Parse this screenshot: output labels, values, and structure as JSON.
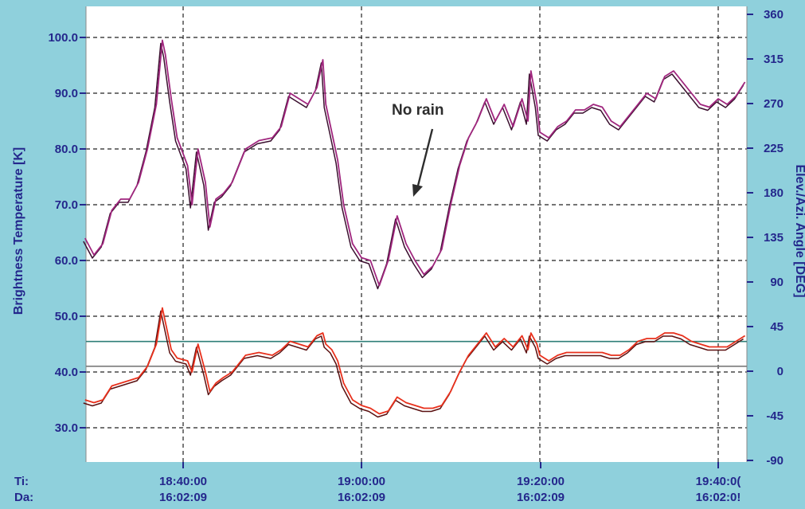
{
  "chart_data": {
    "type": "line",
    "ylabel": "Brightness Temperature [K]",
    "y2label": "Elev./Azi. Angle [DEG]",
    "ylim": [
      22,
      104
    ],
    "y2lim": [
      -90,
      360
    ],
    "yticks": [
      "100.0",
      "90.0",
      "80.0",
      "70.0",
      "60.0",
      "50.0",
      "40.0",
      "30.0"
    ],
    "y2ticks": [
      "360",
      "315",
      "270",
      "225",
      "180",
      "135",
      "90",
      "45",
      "0",
      "-45",
      "-90"
    ],
    "x_row_labels": [
      "Ti:",
      "Da:"
    ],
    "xticks": [
      {
        "time": "18:40:00",
        "date": "16:02:09"
      },
      {
        "time": "19:00:00",
        "date": "16:02:09"
      },
      {
        "time": "19:20:00",
        "date": "16:02:09"
      },
      {
        "time": "19:40:0(",
        "date": "16:02:0!"
      }
    ],
    "grid": true,
    "annotation": "No rain",
    "colors": {
      "background": "#8fd0dc",
      "plot_area": "#ffffff",
      "axis_text": "#24278c",
      "upper_series": "#a0267e",
      "upper_series_dark": "#3a0f2e",
      "lower_series": "#e8301c",
      "lower_series_dark": "#5a1010",
      "elevation_line": "#2f7f78",
      "azimuth_line": "#7a7a7a"
    },
    "reference_lines": [
      {
        "axis": "right",
        "value": 30,
        "color": "#2f7f78"
      },
      {
        "axis": "right",
        "value": 5,
        "color": "#7a7a7a"
      }
    ],
    "series": [
      {
        "x": [
          "18:29:00",
          "18:30:00",
          "18:31:00",
          "18:32:00",
          "18:33:00",
          "18:34:00",
          "18:35:00",
          "18:36:00",
          "18:37:00",
          "18:37:40",
          "18:38:00",
          "18:38:40",
          "18:39:20",
          "18:40:30",
          "18:41:00",
          "18:41:40",
          "18:42:30",
          "18:43:00",
          "18:43:40",
          "18:44:30",
          "18:45:30",
          "18:47:00",
          "18:48:30",
          "18:50:00",
          "18:51:00",
          "18:52:00",
          "18:53:00",
          "18:54:00",
          "18:55:00",
          "18:55:40",
          "18:56:00",
          "18:56:40",
          "18:57:20",
          "18:58:00",
          "18:59:00",
          "19:00:00",
          "19:01:00",
          "19:02:00",
          "19:03:00",
          "19:04:00",
          "19:05:00",
          "19:06:00",
          "19:07:00",
          "19:08:00",
          "19:09:00",
          "19:10:00",
          "19:11:00",
          "19:12:00",
          "19:13:00",
          "19:14:00",
          "19:15:00",
          "19:16:00",
          "19:17:00",
          "19:18:00",
          "19:18:40",
          "19:19:00",
          "19:19:40",
          "19:20:00",
          "19:21:00",
          "19:22:00",
          "19:23:00",
          "19:24:00",
          "19:25:00",
          "19:26:00",
          "19:27:00",
          "19:28:00",
          "19:29:00",
          "19:30:00",
          "19:31:00",
          "19:32:00",
          "19:33:00",
          "19:34:00",
          "19:35:00",
          "19:36:00",
          "19:37:00",
          "19:38:00",
          "19:39:00",
          "19:40:00",
          "19:41:00",
          "19:42:00",
          "19:43:00"
        ],
        "values": [
          64.0,
          61.0,
          63.0,
          69.0,
          71.0,
          71.0,
          74.0,
          80.0,
          88.0,
          99.5,
          97.0,
          89.0,
          82.0,
          77.0,
          70.0,
          80.0,
          74.0,
          66.0,
          71.0,
          72.0,
          74.0,
          80.0,
          81.5,
          82.0,
          84.0,
          90.0,
          89.0,
          88.0,
          91.0,
          96.0,
          88.0,
          83.0,
          78.0,
          70.0,
          63.0,
          60.5,
          60.0,
          55.5,
          60.0,
          68.0,
          63.0,
          60.0,
          57.5,
          59.0,
          62.0,
          70.0,
          77.0,
          82.0,
          85.0,
          89.0,
          85.0,
          88.0,
          84.0,
          89.0,
          85.0,
          94.0,
          88.0,
          83.0,
          82.0,
          84.0,
          85.0,
          87.0,
          87.0,
          88.0,
          87.5,
          85.0,
          84.0,
          86.0,
          88.0,
          90.0,
          89.0,
          93.0,
          94.0,
          92.0,
          90.0,
          88.0,
          87.5,
          89.0,
          88.0,
          89.5,
          92.0
        ]
      },
      {
        "x": [
          "18:29:00",
          "18:30:00",
          "18:31:00",
          "18:32:00",
          "18:33:00",
          "18:34:00",
          "18:35:00",
          "18:36:00",
          "18:37:00",
          "18:37:40",
          "18:38:00",
          "18:38:40",
          "18:39:20",
          "18:40:30",
          "18:41:00",
          "18:41:40",
          "18:42:30",
          "18:43:00",
          "18:43:40",
          "18:44:30",
          "18:45:30",
          "18:47:00",
          "18:48:30",
          "18:50:00",
          "18:51:00",
          "18:52:00",
          "18:53:00",
          "18:54:00",
          "18:55:00",
          "18:55:40",
          "18:56:00",
          "18:56:40",
          "18:57:20",
          "18:58:00",
          "18:59:00",
          "19:00:00",
          "19:01:00",
          "19:02:00",
          "19:03:00",
          "19:04:00",
          "19:05:00",
          "19:06:00",
          "19:07:00",
          "19:08:00",
          "19:09:00",
          "19:10:00",
          "19:11:00",
          "19:12:00",
          "19:13:00",
          "19:14:00",
          "19:15:00",
          "19:16:00",
          "19:17:00",
          "19:18:00",
          "19:18:40",
          "19:19:00",
          "19:19:40",
          "19:20:00",
          "19:21:00",
          "19:22:00",
          "19:23:00",
          "19:24:00",
          "19:25:00",
          "19:26:00",
          "19:27:00",
          "19:28:00",
          "19:29:00",
          "19:30:00",
          "19:31:00",
          "19:32:00",
          "19:33:00",
          "19:34:00",
          "19:35:00",
          "19:36:00",
          "19:37:00",
          "19:38:00",
          "19:39:00",
          "19:40:00",
          "19:41:00",
          "19:42:00",
          "19:43:00"
        ],
        "values": [
          35.0,
          34.5,
          35.0,
          37.5,
          38.0,
          38.5,
          39.0,
          41.0,
          45.0,
          51.5,
          49.0,
          44.0,
          42.5,
          42.0,
          40.0,
          45.0,
          40.0,
          36.5,
          38.0,
          39.0,
          40.0,
          43.0,
          43.5,
          43.0,
          44.0,
          45.5,
          45.0,
          44.5,
          46.5,
          47.0,
          45.0,
          44.0,
          42.0,
          38.0,
          35.0,
          34.0,
          33.5,
          32.5,
          33.0,
          35.5,
          34.5,
          34.0,
          33.5,
          33.5,
          34.0,
          36.5,
          40.0,
          43.0,
          45.0,
          47.0,
          44.5,
          46.0,
          44.5,
          46.5,
          44.0,
          47.0,
          45.0,
          43.0,
          42.0,
          43.0,
          43.5,
          43.5,
          43.5,
          43.5,
          43.5,
          43.0,
          43.0,
          44.0,
          45.5,
          46.0,
          46.0,
          47.0,
          47.0,
          46.5,
          45.5,
          45.0,
          44.5,
          44.5,
          44.5,
          45.5,
          46.5
        ]
      }
    ]
  }
}
